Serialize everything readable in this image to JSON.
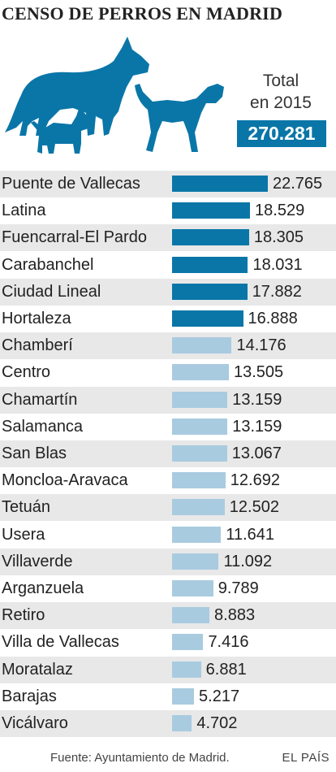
{
  "header": {
    "title": "CENSO DE PERROS EN MADRID",
    "total_label_line1": "Total",
    "total_label_line2": "en 2015",
    "total_value": "270.281"
  },
  "colors": {
    "highlight_bar": "#0a76a8",
    "normal_bar": "#a9cbe0",
    "dog_illustration": "#0a76a8",
    "row_shade": "#e8e8e8"
  },
  "chart_data": {
    "type": "bar",
    "orientation": "horizontal",
    "categories": [
      "Puente de Vallecas",
      "Latina",
      "Fuencarral-El Pardo",
      "Carabanchel",
      "Ciudad Lineal",
      "Hortaleza",
      "Chamberí",
      "Centro",
      "Chamartín",
      "Salamanca",
      "San Blas",
      "Moncloa-Aravaca",
      "Tetuán",
      "Usera",
      "Villaverde",
      "Arganzuela",
      "Retiro",
      "Villa de Vallecas",
      "Moratalaz",
      "Barajas",
      "Vicálvaro"
    ],
    "values": [
      22765,
      18529,
      18305,
      18031,
      17882,
      16888,
      14176,
      13505,
      13159,
      13159,
      13067,
      12692,
      12502,
      11641,
      11092,
      9789,
      8883,
      7416,
      6881,
      5217,
      4702
    ],
    "value_labels": [
      "22.765",
      "18.529",
      "18.305",
      "18.031",
      "17.882",
      "16.888",
      "14.176",
      "13.505",
      "13.159",
      "13.159",
      "13.067",
      "12.692",
      "12.502",
      "11.641",
      "11.092",
      "9.789",
      "8.883",
      "7.416",
      "6.881",
      "5.217",
      "4.702"
    ],
    "highlighted_top_n": 6,
    "title": "CENSO DE PERROS EN MADRID",
    "xlabel": "",
    "ylabel": ""
  },
  "footer": {
    "source": "Fuente: Ayuntamiento de Madrid.",
    "brand": "EL PAÍS"
  }
}
